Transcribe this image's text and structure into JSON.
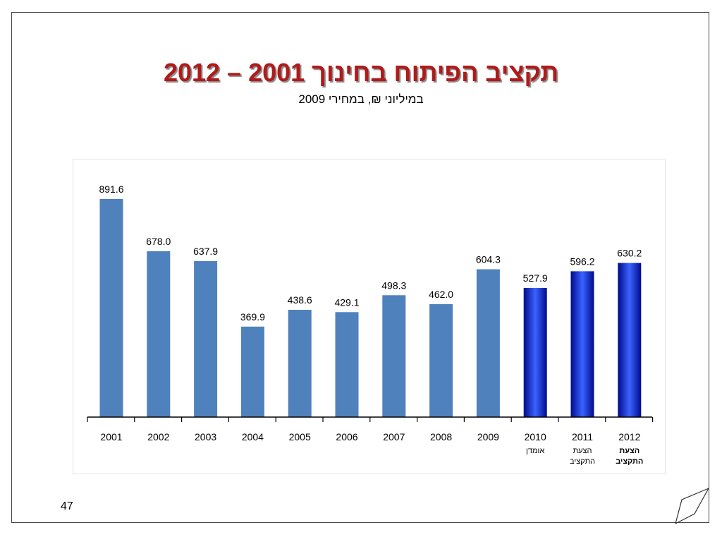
{
  "title": "תקציב הפיתוח בחינוך 2001 – 2012",
  "subtitle": "במיליוני ₪, במחירי 2009",
  "page_number": "47",
  "colors": {
    "title": "#b01a1a",
    "bar_actual": "#4f81bd",
    "bar_projected_dark": "#000a8c",
    "bar_projected_light": "#3a63ff"
  },
  "chart_data": {
    "type": "bar",
    "categories": [
      "2001",
      "2002",
      "2003",
      "2004",
      "2005",
      "2006",
      "2007",
      "2008",
      "2009",
      "2010",
      "2011",
      "2012"
    ],
    "values": [
      891.6,
      678.0,
      637.9,
      369.9,
      438.6,
      429.1,
      498.3,
      462.0,
      604.3,
      527.9,
      596.2,
      630.2
    ],
    "value_labels": [
      "891.6",
      "678.0",
      "637.9",
      "369.9",
      "438.6",
      "429.1",
      "498.3",
      "462.0",
      "604.3",
      "527.9",
      "596.2",
      "630.2"
    ],
    "category_notes": [
      {
        "category": "2010",
        "lines": [
          "אומדן"
        ],
        "bold": false
      },
      {
        "category": "2011",
        "lines": [
          "הצעת",
          "התקציב"
        ],
        "bold": false
      },
      {
        "category": "2012",
        "lines": [
          "הצעת",
          "התקציב"
        ],
        "bold": true
      }
    ],
    "projected_categories": [
      "2010",
      "2011",
      "2012"
    ],
    "ylim": [
      0,
      891.6
    ],
    "xlabel": "",
    "ylabel": "",
    "grid": false,
    "legend": "none"
  }
}
